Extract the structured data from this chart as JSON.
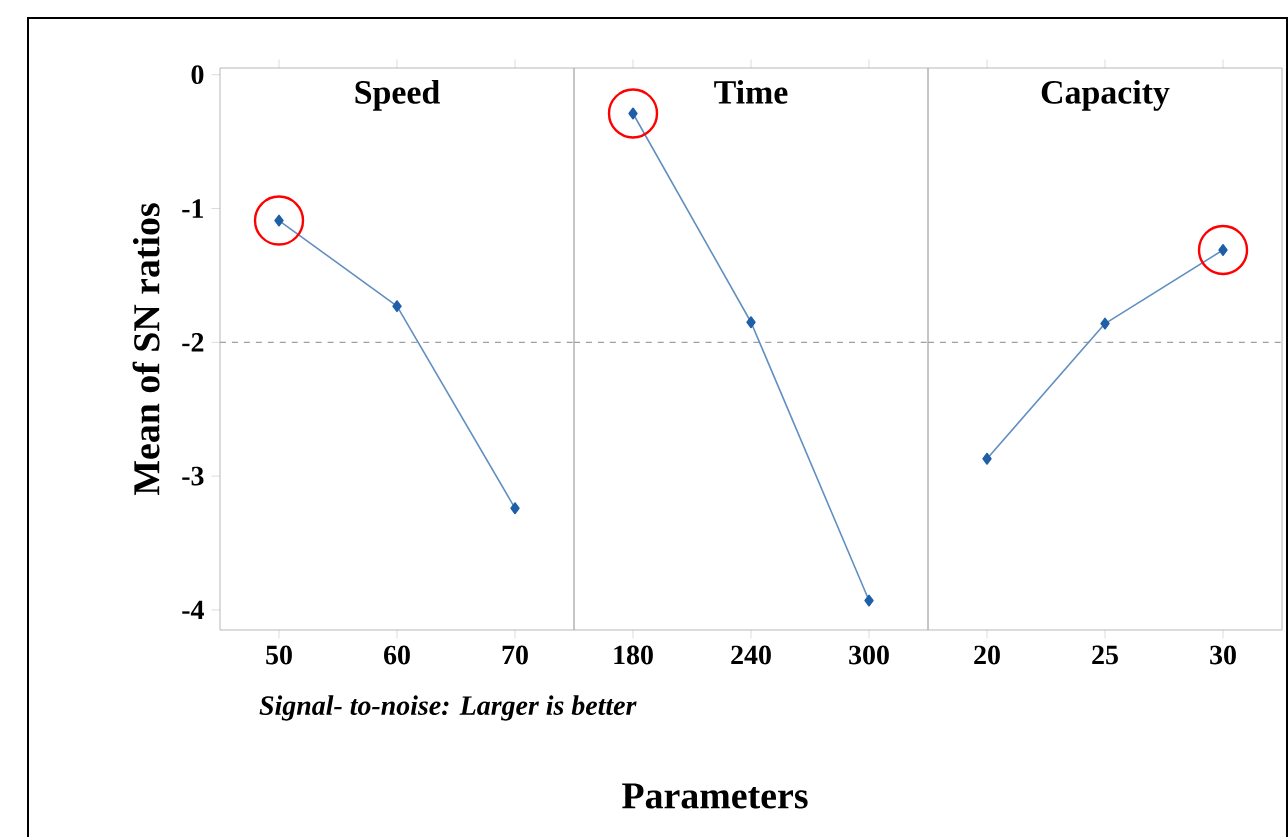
{
  "chart_data": [
    {
      "type": "line",
      "title": "Speed",
      "ylabel": "Mean of SN ratios",
      "annotations": [
        "Signal- to-noise: Larger is better"
      ],
      "categories": [
        "50",
        "60",
        "70"
      ],
      "values": [
        -1.09,
        -1.73,
        -3.24
      ],
      "color": "#1f5fa8",
      "marker": "diamond",
      "ylim": [
        -4.15,
        0.05
      ],
      "yticks": [
        0,
        -1,
        -2,
        -3,
        -4
      ],
      "ref_lines": [
        {
          "axis": "y",
          "value": -2,
          "color": "#a0a0a0",
          "line_style": "dashed"
        }
      ]
    },
    {
      "type": "line",
      "title": "Time",
      "xlabel": "Parameters",
      "categories": [
        "180",
        "240",
        "300"
      ],
      "values": [
        -0.29,
        -1.85,
        -3.93
      ],
      "color": "#1f5fa8",
      "marker": "diamond",
      "ylim": [
        -4.15,
        0.05
      ],
      "tick_labels": "x",
      "ref_lines": [
        {
          "axis": "y",
          "value": -2,
          "color": "#a0a0a0",
          "line_style": "dashed"
        }
      ]
    },
    {
      "type": "line",
      "title": "Capacity",
      "categories": [
        "20",
        "25",
        "30"
      ],
      "values": [
        -2.87,
        -1.86,
        -1.31
      ],
      "color": "#1f5fa8",
      "marker": "diamond",
      "ylim": [
        -4.15,
        0.05
      ],
      "tick_labels": "x",
      "ref_lines": [
        {
          "axis": "y",
          "value": -2,
          "color": "#a0a0a0",
          "line_style": "dashed"
        }
      ]
    }
  ]
}
